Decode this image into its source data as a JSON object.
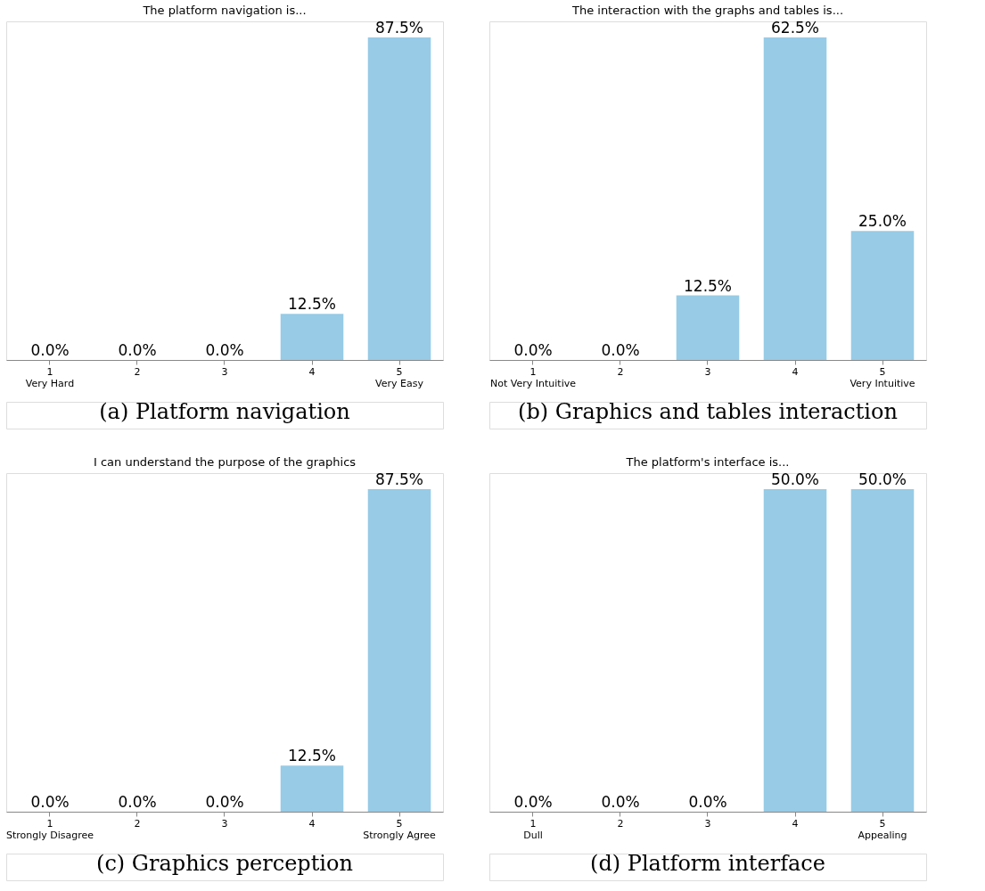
{
  "chart_data": [
    {
      "type": "bar",
      "title": "The platform navigation is...",
      "categories": [
        "1\nVery Hard",
        "2",
        "3",
        "4",
        "5\nVery Easy"
      ],
      "values": [
        0.0,
        0.0,
        0.0,
        12.5,
        87.5
      ],
      "value_labels": [
        "0.0%",
        "0.0%",
        "0.0%",
        "12.5%",
        "87.5%"
      ],
      "color": "#97cbe6",
      "annotations": [
        "(a) Platform navigation"
      ],
      "tick_labels": "x"
    },
    {
      "type": "bar",
      "title": "The interaction with the graphs and tables is...",
      "categories": [
        "1\nNot Very Intuitive",
        "2",
        "3",
        "4",
        "5\nVery Intuitive"
      ],
      "values": [
        0.0,
        0.0,
        12.5,
        62.5,
        25.0
      ],
      "value_labels": [
        "0.0%",
        "0.0%",
        "12.5%",
        "62.5%",
        "25.0%"
      ],
      "color": "#97cbe6",
      "annotations": [
        "(b) Graphics and tables interaction"
      ],
      "tick_labels": "x"
    },
    {
      "type": "bar",
      "title": "I can understand the purpose of the graphics",
      "categories": [
        "1\nStrongly Disagree",
        "2",
        "3",
        "4",
        "5\nStrongly Agree"
      ],
      "values": [
        0.0,
        0.0,
        0.0,
        12.5,
        87.5
      ],
      "value_labels": [
        "0.0%",
        "0.0%",
        "0.0%",
        "12.5%",
        "87.5%"
      ],
      "color": "#97cbe6",
      "annotations": [
        "(c) Graphics perception"
      ],
      "tick_labels": "x"
    },
    {
      "type": "bar",
      "title": "The platform's interface is...",
      "categories": [
        "1\nDull",
        "2",
        "3",
        "4",
        "5\nAppealing"
      ],
      "values": [
        0.0,
        0.0,
        0.0,
        50.0,
        50.0
      ],
      "value_labels": [
        "0.0%",
        "0.0%",
        "0.0%",
        "50.0%",
        "50.0%"
      ],
      "color": "#97cbe6",
      "annotations": [
        "(d) Platform interface"
      ],
      "tick_labels": "x"
    }
  ]
}
